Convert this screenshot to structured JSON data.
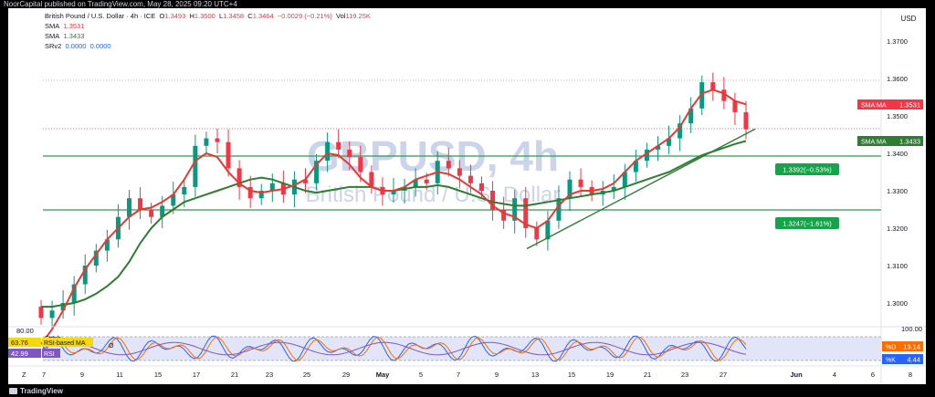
{
  "header": {
    "publisher_line": "NoorCapital published on TradingView.com, May 28, 2025 09:20 UTC+4"
  },
  "legend": {
    "symbol": "British Pound / U.S. Dollar · 4h · ICE",
    "O": "1.3493",
    "H": "1.3500",
    "L": "1.3458",
    "C": "1.3464",
    "change": "−0.0029 (−0.21%)",
    "vol_label": "Vol",
    "vol": "119.25K",
    "sma1_label": "SMA",
    "sma1_value": "1.3531",
    "sma2_label": "SMA",
    "sma2_value": "1.3433",
    "srv_label": "SRv2",
    "srv_v1": "0.0000",
    "srv_v2": "0.0000"
  },
  "watermark": {
    "title": "GBPUSD, 4h",
    "subtitle": "British Pound / U.S. Dollar"
  },
  "currency": "USD",
  "price_axis": [
    "1.3700",
    "1.3600",
    "1.3500",
    "1.3400",
    "1.3300",
    "1.3200",
    "1.3100",
    "1.3000"
  ],
  "price_labels": {
    "sma_red": {
      "name": "SMA:MA",
      "value": "1.3531",
      "color": "#f23645"
    },
    "sma_green": {
      "name": "SMA:MA",
      "value": "1.3433",
      "color": "#2e7d32"
    },
    "level1": "1.3392(−0.53%)",
    "level2": "1.3247(−1.61%)"
  },
  "osc": {
    "axis_top": "100.00",
    "axis_label": "80.00",
    "stoch_label": "Stoch",
    "rsi_ma_label": "RSI-based MA",
    "rsi_ma_value": "63.76",
    "rsi_label": "RSI",
    "rsi_value": "42.99",
    "d_label": "%D",
    "d_value": "13.14",
    "k_label": "%K",
    "k_value": "4.44",
    "toggle": "Ø"
  },
  "time_axis": {
    "tz": "Z",
    "labels": [
      "7",
      "9",
      "11",
      "15",
      "17",
      "21",
      "23",
      "25",
      "29",
      "May",
      "5",
      "7",
      "9",
      "13",
      "15",
      "19",
      "21",
      "23",
      "27",
      "Jun",
      "4",
      "6",
      "8"
    ]
  },
  "footer": {
    "brand": "TradingView"
  },
  "colors": {
    "up": "#089981",
    "down": "#f23645",
    "sma_fast": "#e53935",
    "sma_slow": "#2e7d32",
    "level": "#2e9e4f",
    "trend": "#2e7d32"
  },
  "chart_data": {
    "type": "candlestick",
    "title": "GBPUSD, 4h",
    "ylim": [
      1.295,
      1.373
    ],
    "levels": [
      1.3392,
      1.3247
    ],
    "trendline": [
      {
        "t": "May 12",
        "y": 1.3145
      },
      {
        "t": "May 28",
        "y": 1.3465
      }
    ],
    "close_series": [
      1.296,
      1.298,
      1.3,
      1.305,
      1.31,
      1.314,
      1.317,
      1.323,
      1.328,
      1.325,
      1.323,
      1.326,
      1.329,
      1.331,
      1.342,
      1.344,
      1.343,
      1.336,
      1.331,
      1.328,
      1.33,
      1.332,
      1.329,
      1.333,
      1.332,
      1.338,
      1.343,
      1.341,
      1.339,
      1.335,
      1.331,
      1.329,
      1.33,
      1.331,
      1.333,
      1.332,
      1.338,
      1.336,
      1.334,
      1.332,
      1.33,
      1.325,
      1.322,
      1.328,
      1.32,
      1.317,
      1.322,
      1.328,
      1.333,
      1.331,
      1.329,
      1.33,
      1.331,
      1.335,
      1.338,
      1.341,
      1.342,
      1.344,
      1.348,
      1.352,
      1.359,
      1.357,
      1.354,
      1.351,
      1.3464
    ],
    "sma_fast": [
      1.289,
      1.293,
      1.298,
      1.304,
      1.309,
      1.313,
      1.317,
      1.32,
      1.323,
      1.325,
      1.3255,
      1.327,
      1.329,
      1.333,
      1.338,
      1.34,
      1.339,
      1.335,
      1.332,
      1.33,
      1.3295,
      1.33,
      1.3305,
      1.3315,
      1.333,
      1.337,
      1.34,
      1.3395,
      1.337,
      1.3335,
      1.331,
      1.33,
      1.33,
      1.331,
      1.333,
      1.334,
      1.335,
      1.3345,
      1.333,
      1.331,
      1.329,
      1.326,
      1.324,
      1.323,
      1.321,
      1.32,
      1.322,
      1.326,
      1.329,
      1.33,
      1.33,
      1.3305,
      1.332,
      1.335,
      1.338,
      1.34,
      1.342,
      1.344,
      1.347,
      1.352,
      1.356,
      1.357,
      1.356,
      1.354,
      1.3531
    ],
    "sma_slow": [
      1.299,
      1.299,
      1.2995,
      1.3,
      1.301,
      1.3025,
      1.3045,
      1.307,
      1.311,
      1.316,
      1.32,
      1.323,
      1.325,
      1.327,
      1.328,
      1.329,
      1.33,
      1.331,
      1.332,
      1.333,
      1.3335,
      1.333,
      1.332,
      1.331,
      1.33,
      1.3295,
      1.33,
      1.3305,
      1.331,
      1.331,
      1.331,
      1.33,
      1.33,
      1.3305,
      1.331,
      1.331,
      1.3315,
      1.331,
      1.33,
      1.329,
      1.328,
      1.327,
      1.3265,
      1.326,
      1.326,
      1.3265,
      1.327,
      1.3275,
      1.328,
      1.3285,
      1.329,
      1.3295,
      1.33,
      1.331,
      1.332,
      1.333,
      1.334,
      1.335,
      1.3365,
      1.338,
      1.3395,
      1.3405,
      1.3415,
      1.3425,
      1.3433
    ]
  }
}
